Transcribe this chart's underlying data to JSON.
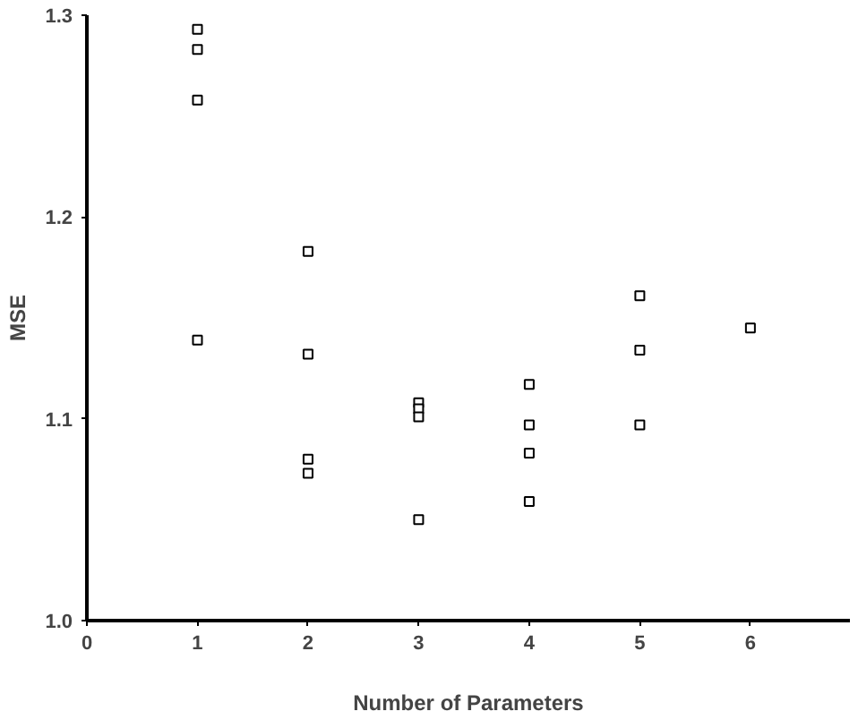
{
  "chart_data": {
    "type": "scatter",
    "xlabel": "Number of Parameters",
    "ylabel": "MSE",
    "xlim": [
      0,
      6.9
    ],
    "ylim": [
      1.0,
      1.3
    ],
    "xticks": [
      0,
      1,
      2,
      3,
      4,
      5,
      6
    ],
    "yticks": [
      {
        "value": 1.0,
        "label": "1.0"
      },
      {
        "value": 1.1,
        "label": "1.1"
      },
      {
        "value": 1.2,
        "label": "1.2"
      },
      {
        "value": 1.3,
        "label": "1.3"
      }
    ],
    "grid": false,
    "marker": "square",
    "series": [
      {
        "color": "#000000",
        "x": [
          1,
          1,
          1,
          1,
          2,
          2,
          2,
          2,
          3,
          3,
          3,
          3,
          4,
          4,
          4,
          4,
          5,
          5,
          5,
          6
        ],
        "values": [
          1.293,
          1.283,
          1.258,
          1.139,
          1.183,
          1.132,
          1.08,
          1.073,
          1.108,
          1.105,
          1.101,
          1.05,
          1.117,
          1.097,
          1.083,
          1.059,
          1.161,
          1.134,
          1.097,
          1.145
        ]
      }
    ]
  }
}
